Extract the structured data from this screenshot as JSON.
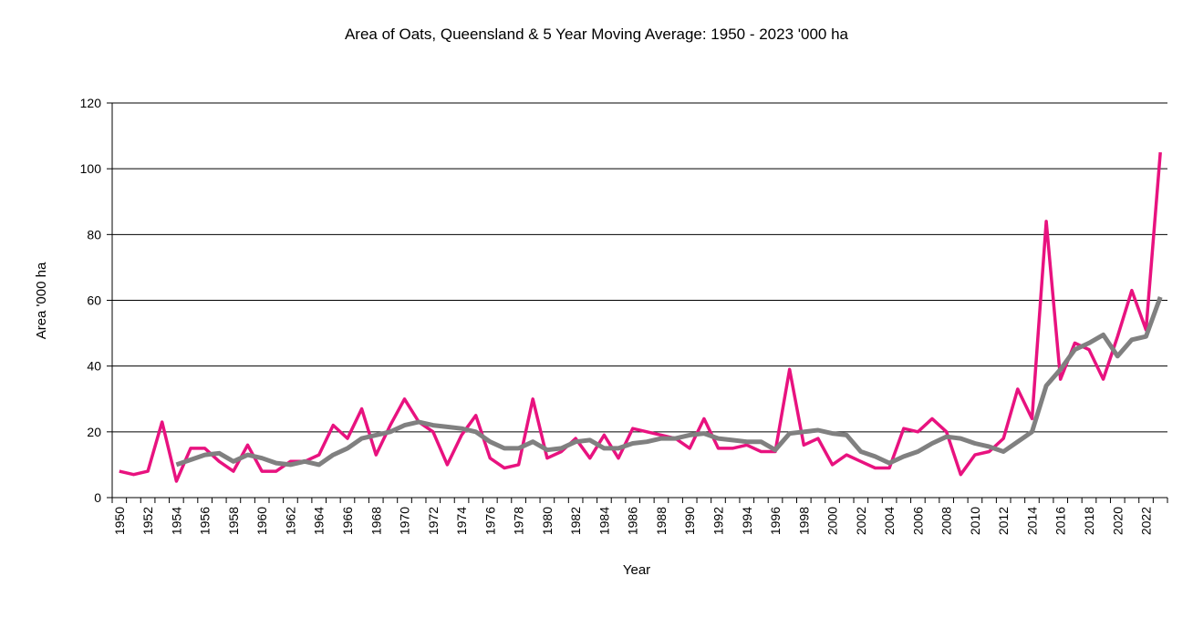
{
  "chart_data": {
    "type": "line",
    "title": "Area of Oats, Queensland & 5 Year Moving Average: 1950 - 2023 '000 ha",
    "xlabel": "Year",
    "ylabel": "Area '000 ha",
    "ylim": [
      0,
      120
    ],
    "yticks": [
      0,
      20,
      40,
      60,
      80,
      100,
      120
    ],
    "grid": true,
    "legend": "none",
    "x_start": 1950,
    "x_end": 2023,
    "x_label_step": 2,
    "series": [
      {
        "name": "Area of Oats",
        "color": "#E8127F",
        "start_year": 1950,
        "values": [
          8,
          7,
          8,
          23,
          5,
          15,
          15,
          11,
          8,
          16,
          8,
          8,
          11,
          11,
          13,
          22,
          18,
          27,
          13,
          22,
          30,
          23,
          20,
          10,
          19,
          25,
          12,
          9,
          10,
          30,
          12,
          14,
          18,
          12,
          19,
          12,
          21,
          20,
          19,
          18,
          15,
          24,
          15,
          15,
          16,
          14,
          14,
          39,
          16,
          18,
          10,
          13,
          11,
          9,
          9,
          21,
          20,
          24,
          20,
          7,
          13,
          14,
          18,
          33,
          24,
          84,
          36,
          47,
          45,
          36,
          49,
          63,
          51,
          105
        ]
      },
      {
        "name": "5 Year Moving Average",
        "color": "#808080",
        "start_year": 1954,
        "values": [
          10,
          11.5,
          13,
          13.5,
          11,
          13,
          12,
          10.5,
          10,
          11,
          10,
          13,
          15,
          18,
          19,
          20,
          22,
          23,
          22,
          21.5,
          21,
          20,
          17,
          15,
          15,
          17,
          14.5,
          15,
          17,
          17.5,
          15,
          15,
          16.5,
          17,
          18,
          18,
          19,
          19.5,
          18,
          17.5,
          17,
          17,
          14.5,
          19.5,
          20,
          20.5,
          19.5,
          19,
          14,
          12.5,
          10.5,
          12.5,
          14,
          16.5,
          18.5,
          18,
          16.5,
          15.5,
          14,
          17,
          20,
          34,
          39,
          45,
          47,
          49.5,
          43,
          48,
          49,
          61
        ]
      }
    ]
  }
}
